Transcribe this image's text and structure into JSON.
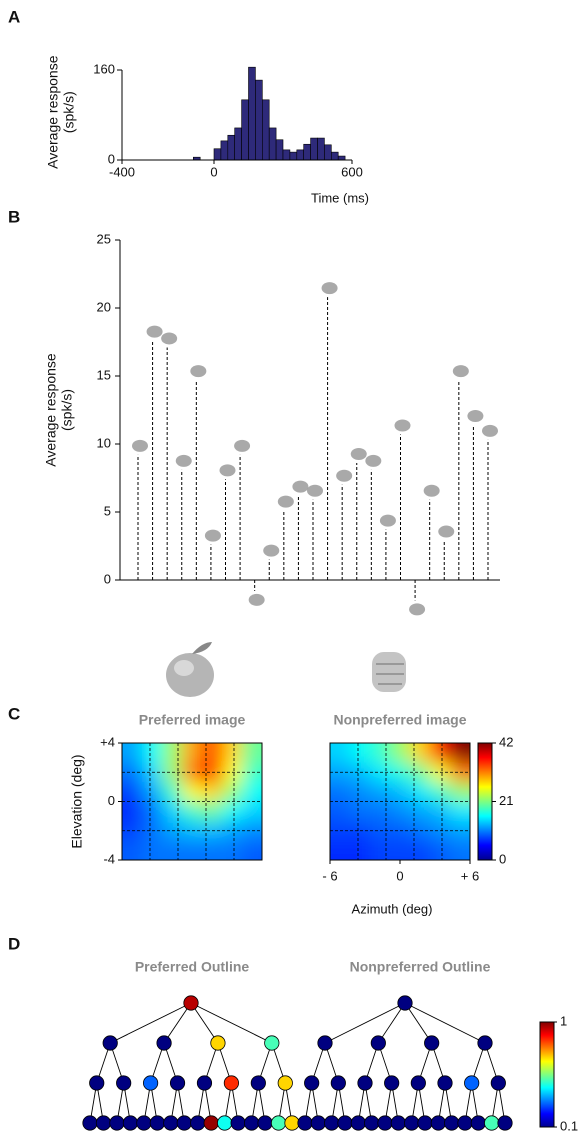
{
  "chart_data": [
    {
      "panel": "A",
      "type": "histogram",
      "ylabel": [
        "Average response",
        "(spk/s)"
      ],
      "xlabel": "Time (ms)",
      "bins": [
        -90,
        -60,
        -30,
        0,
        30,
        60,
        90,
        120,
        150,
        180,
        210,
        240,
        270,
        300,
        330,
        360,
        390,
        420,
        450,
        480,
        510,
        540,
        570
      ],
      "values": [
        5,
        0,
        0,
        20,
        34,
        44,
        57,
        107,
        165,
        142,
        107,
        57,
        36,
        18,
        14,
        18,
        28,
        39,
        39,
        27,
        14,
        7
      ],
      "color": "#2e2a7a",
      "xlim": [
        -400,
        600
      ],
      "xticks": [
        -400,
        0,
        600
      ],
      "ylim": [
        0,
        170
      ],
      "yticks": [
        0,
        160
      ]
    },
    {
      "panel": "B",
      "type": "stem",
      "ylabel": [
        "Average response",
        "(spk/s)"
      ],
      "values": [
        9.2,
        17.6,
        17.1,
        8.1,
        14.7,
        2.6,
        7.4,
        9.2,
        -0.8,
        1.5,
        5.1,
        6.2,
        5.9,
        20.8,
        7.0,
        8.6,
        8.1,
        3.7,
        10.7,
        -1.5,
        5.9,
        2.9,
        14.7,
        11.4,
        10.3
      ],
      "ylim": [
        0,
        25
      ],
      "yticks": [
        0,
        5,
        10,
        15,
        20,
        25
      ]
    },
    {
      "panel": "C",
      "type": "heatmap",
      "title": "Preferred image",
      "ylabel": "Elevation (deg)",
      "xlim": [
        -6,
        6
      ],
      "ylim": [
        -4,
        4
      ],
      "yticks": [
        {
          "value": 4,
          "label": "+4"
        },
        0,
        -4
      ],
      "clim": [
        0,
        42
      ],
      "z": [
        [
          12,
          16,
          22,
          30,
          34,
          28,
          20
        ],
        [
          10,
          14,
          22,
          32,
          36,
          26,
          18
        ],
        [
          8,
          12,
          18,
          26,
          28,
          22,
          16
        ],
        [
          7,
          10,
          14,
          18,
          20,
          16,
          14
        ],
        [
          8,
          10,
          12,
          13,
          13,
          12,
          11
        ],
        [
          9,
          10,
          10,
          10,
          10,
          10,
          9
        ]
      ]
    },
    {
      "type": "heatmap",
      "title": "Nonpreferred image",
      "xlabel": "Azimuth (deg)",
      "xlim": [
        -6,
        6
      ],
      "ylim": [
        -4,
        4
      ],
      "xticks": [
        {
          "value": -6,
          "label": "- 6"
        },
        0,
        {
          "value": 6,
          "label": "+ 6"
        }
      ],
      "clim": [
        0,
        42
      ],
      "colorbar_ticks": [
        0,
        21,
        42
      ],
      "z": [
        [
          14,
          16,
          18,
          22,
          28,
          36,
          42
        ],
        [
          12,
          13,
          15,
          17,
          20,
          26,
          32
        ],
        [
          10,
          11,
          12,
          13,
          15,
          18,
          22
        ],
        [
          9,
          10,
          10,
          11,
          12,
          13,
          15
        ],
        [
          8,
          8,
          9,
          9,
          10,
          11,
          12
        ],
        [
          7,
          7,
          8,
          8,
          8,
          9,
          10
        ]
      ]
    },
    {
      "panel": "D",
      "type": "tree",
      "title": "Preferred Outline",
      "clim": [
        0.1,
        1
      ],
      "levels": [
        [
          0.95
        ],
        [
          0.1,
          0.1,
          0.7,
          0.5
        ],
        [
          0.1,
          0.1,
          0.3,
          0.1,
          0.1,
          0.85,
          0.1,
          0.7
        ],
        [
          0.1,
          0.1,
          0.1,
          0.1,
          0.1,
          0.1,
          0.1,
          0.1,
          0.1,
          0.98,
          0.45,
          0.1,
          0.1,
          0.1,
          0.5,
          0.7
        ]
      ]
    },
    {
      "type": "tree",
      "title": "Nonpreferred Outline",
      "clim": [
        0.1,
        1
      ],
      "colorbar_ticks": [
        0.1,
        1
      ],
      "levels": [
        [
          0.1
        ],
        [
          0.1,
          0.1,
          0.1,
          0.1
        ],
        [
          0.1,
          0.1,
          0.1,
          0.1,
          0.1,
          0.1,
          0.3,
          0.1
        ],
        [
          0.1,
          0.1,
          0.1,
          0.1,
          0.1,
          0.1,
          0.1,
          0.1,
          0.1,
          0.1,
          0.1,
          0.1,
          0.1,
          0.1,
          0.5,
          0.1
        ]
      ]
    }
  ]
}
